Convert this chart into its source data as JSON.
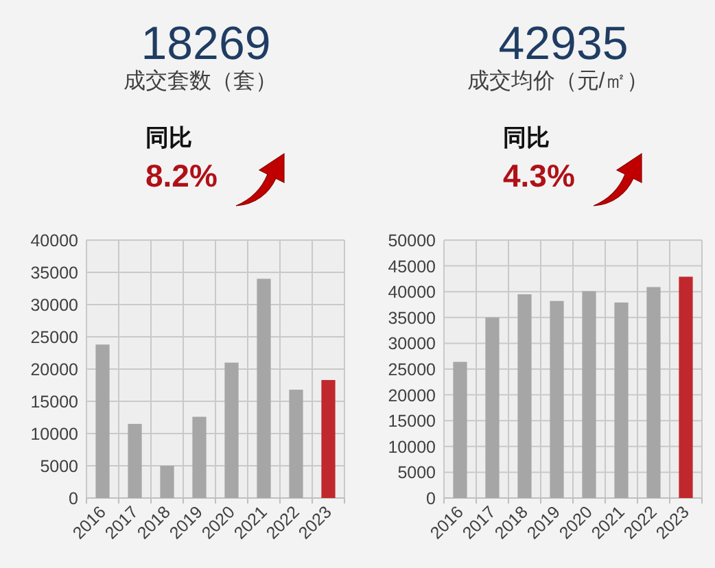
{
  "chart_data": [
    {
      "type": "bar",
      "title": "18269",
      "subtitle": "成交套数（套）",
      "annotations": [
        "同比",
        "8.2%"
      ],
      "categories": [
        "2016",
        "2017",
        "2018",
        "2019",
        "2020",
        "2021",
        "2022",
        "2023"
      ],
      "values": [
        23800,
        11500,
        5000,
        12600,
        21000,
        34000,
        16800,
        18300
      ],
      "colors": [
        "#a6a6a6",
        "#a6a6a6",
        "#a6a6a6",
        "#a6a6a6",
        "#a6a6a6",
        "#a6a6a6",
        "#a6a6a6",
        "#c0282d"
      ],
      "ylim": [
        0,
        40000
      ],
      "yticks": [
        0,
        5000,
        10000,
        15000,
        20000,
        25000,
        30000,
        35000,
        40000
      ],
      "grid": true
    },
    {
      "type": "bar",
      "title": "42935",
      "subtitle": "成交均价（元/㎡）",
      "annotations": [
        "同比",
        "4.3%"
      ],
      "categories": [
        "2016",
        "2017",
        "2018",
        "2019",
        "2020",
        "2021",
        "2022",
        "2023"
      ],
      "values": [
        26400,
        35000,
        39500,
        38200,
        40100,
        37900,
        40900,
        42900
      ],
      "colors": [
        "#a6a6a6",
        "#a6a6a6",
        "#a6a6a6",
        "#a6a6a6",
        "#a6a6a6",
        "#a6a6a6",
        "#a6a6a6",
        "#c0282d"
      ],
      "ylim": [
        0,
        50000
      ],
      "yticks": [
        0,
        5000,
        10000,
        15000,
        20000,
        25000,
        30000,
        35000,
        40000,
        45000,
        50000
      ],
      "grid": true
    }
  ]
}
